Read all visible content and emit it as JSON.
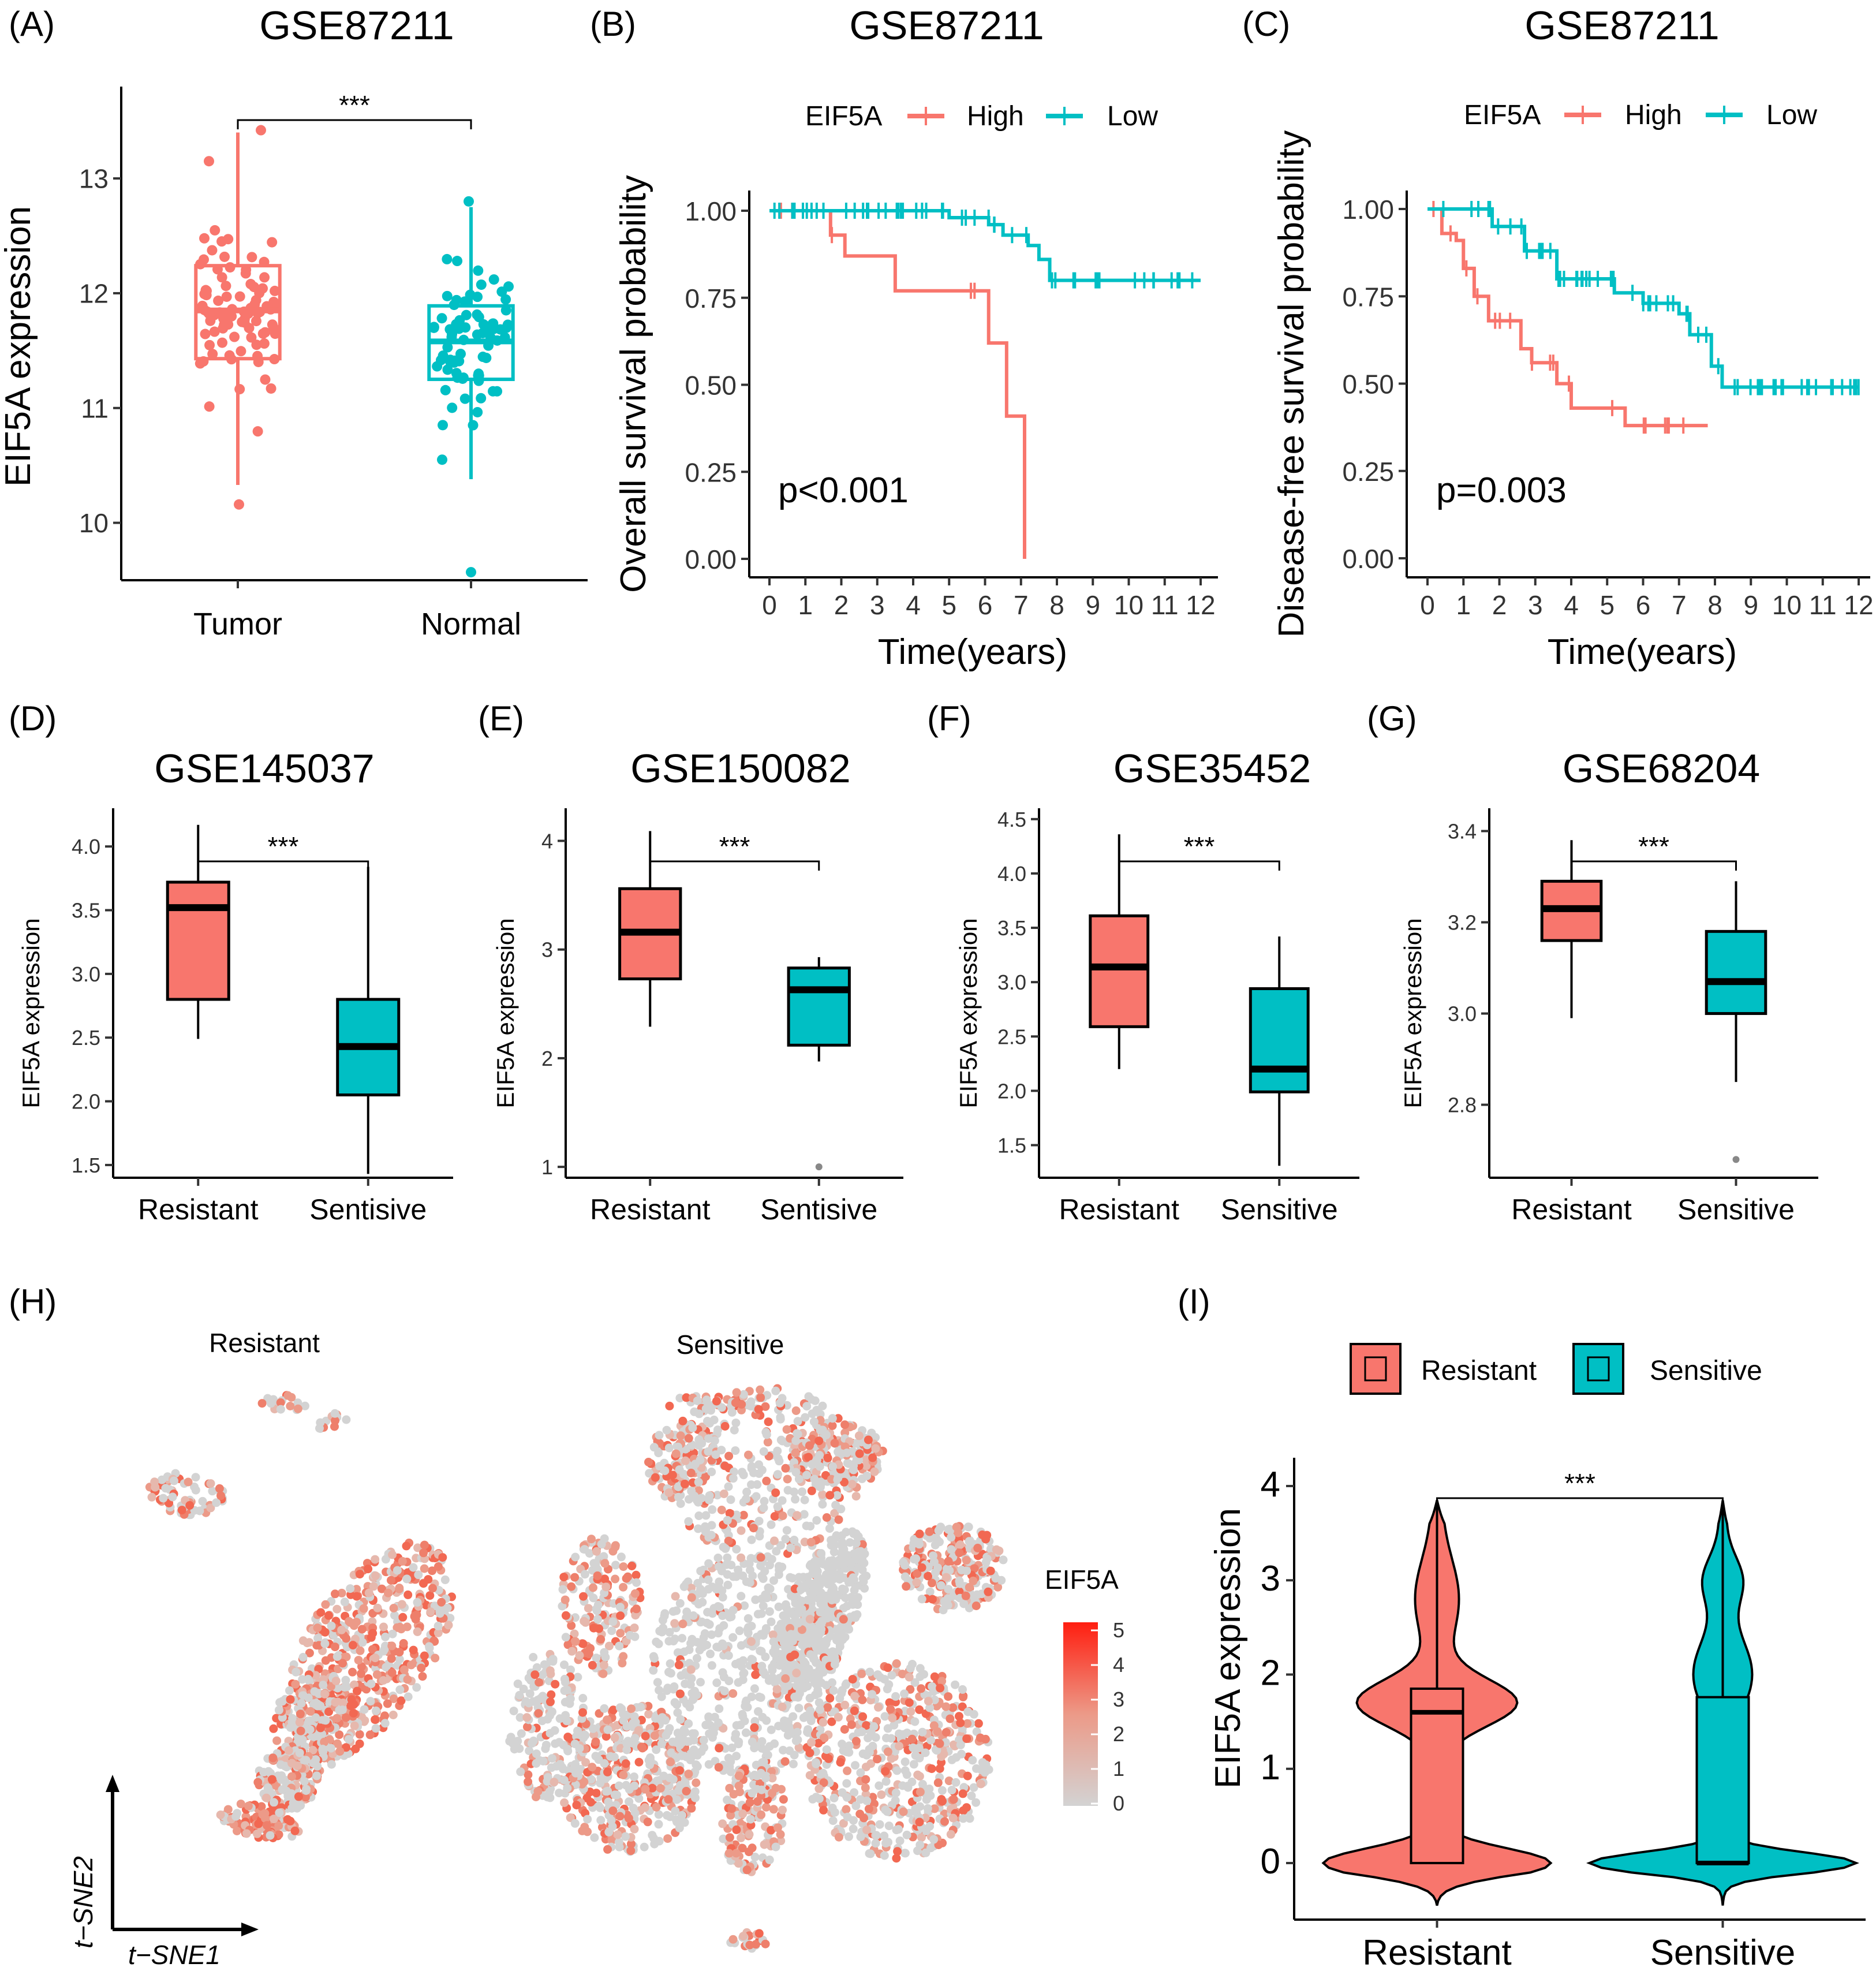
{
  "panels": {
    "A": {
      "label": "(A)",
      "title": "GSE87211",
      "ylabel": "EIF5A expression",
      "significance": "***",
      "chart_data": {
        "type": "box",
        "categories": [
          "Tumor",
          "Normal"
        ],
        "colors": [
          "#F8766D",
          "#00BFC4"
        ],
        "yticks": [
          10,
          11,
          12,
          13
        ],
        "ylim": [
          9.5,
          13.8
        ],
        "boxes": [
          {
            "name": "Tumor",
            "min": 10.33,
            "q1": 11.43,
            "median": 11.85,
            "q3": 12.24,
            "max": 13.4
          },
          {
            "name": "Normal",
            "min": 10.38,
            "q1": 11.25,
            "median": 11.58,
            "q3": 11.89,
            "max": 12.75
          }
        ]
      }
    },
    "B": {
      "label": "(B)",
      "title": "GSE87211",
      "legend_title": "EIF5A",
      "xlabel": "Time(years)",
      "ylabel": "Overall survival probability",
      "pvalue": "p<0.001",
      "chart_data": {
        "type": "line",
        "xlim": [
          0,
          12
        ],
        "ylim": [
          0,
          1
        ],
        "xticks": [
          "0",
          "1",
          "2",
          "3",
          "4",
          "5",
          "6",
          "7",
          "8",
          "9",
          "10",
          "11",
          "12"
        ],
        "yticks": [
          "0.00",
          "0.25",
          "0.50",
          "0.75",
          "1.00"
        ],
        "series": [
          {
            "name": "High",
            "color": "#F8766D",
            "x": [
              0,
              1.7,
              2.1,
              3.5,
              6.1,
              6.6,
              7.1,
              7.1
            ],
            "y": [
              1.0,
              0.93,
              0.87,
              0.77,
              0.62,
              0.41,
              0.0,
              0.0
            ]
          },
          {
            "name": "Low",
            "color": "#00BFC4",
            "x": [
              0,
              5.0,
              6.1,
              6.5,
              7.2,
              7.5,
              7.8,
              12
            ],
            "y": [
              1.0,
              0.98,
              0.96,
              0.93,
              0.9,
              0.86,
              0.8,
              0.8
            ]
          }
        ]
      }
    },
    "C": {
      "label": "(C)",
      "title": "GSE87211",
      "legend_title": "EIF5A",
      "xlabel": "Time(years)",
      "ylabel": "Disease-free survival probability",
      "pvalue": "p=0.003",
      "chart_data": {
        "type": "line",
        "xlim": [
          0,
          12
        ],
        "ylim": [
          0,
          1
        ],
        "xticks": [
          "0",
          "1",
          "2",
          "3",
          "4",
          "5",
          "6",
          "7",
          "8",
          "9",
          "10",
          "11",
          "12"
        ],
        "yticks": [
          "0.00",
          "0.25",
          "0.50",
          "0.75",
          "1.00"
        ],
        "series": [
          {
            "name": "High",
            "color": "#F8766D",
            "x": [
              0,
              0.4,
              0.8,
              1.0,
              1.3,
              1.7,
              2.6,
              2.9,
              3.6,
              4.0,
              5.5,
              7.8
            ],
            "y": [
              1.0,
              0.93,
              0.91,
              0.83,
              0.75,
              0.68,
              0.6,
              0.56,
              0.5,
              0.43,
              0.38,
              0.38
            ]
          },
          {
            "name": "Low",
            "color": "#00BFC4",
            "x": [
              0,
              1.8,
              2.7,
              3.6,
              5.2,
              6.0,
              7.0,
              7.3,
              7.9,
              8.2,
              12
            ],
            "y": [
              1.0,
              0.95,
              0.88,
              0.8,
              0.76,
              0.73,
              0.7,
              0.64,
              0.55,
              0.49,
              0.49
            ]
          }
        ]
      }
    },
    "D": {
      "label": "(D)",
      "title": "GSE145037",
      "ylabel": "EIF5A expression",
      "significance": "***",
      "chart_data": {
        "type": "box",
        "categories": [
          "Resistant",
          "Sentisive"
        ],
        "colors": [
          "#F8766D",
          "#00BFC4"
        ],
        "yticks": [
          "1.5",
          "2.0",
          "2.5",
          "3.0",
          "3.5",
          "4.0"
        ],
        "ylim": [
          1.4,
          4.3
        ],
        "boxes": [
          {
            "name": "Resistant",
            "min": 2.49,
            "q1": 2.8,
            "median": 3.52,
            "q3": 3.72,
            "max": 4.17
          },
          {
            "name": "Sentisive",
            "min": 1.43,
            "q1": 2.05,
            "median": 2.43,
            "q3": 2.8,
            "max": 3.84
          }
        ]
      }
    },
    "E": {
      "label": "(E)",
      "title": "GSE150082",
      "ylabel": "EIF5A expression",
      "significance": "***",
      "chart_data": {
        "type": "box",
        "categories": [
          "Resistant",
          "Sentisive"
        ],
        "colors": [
          "#F8766D",
          "#00BFC4"
        ],
        "yticks": [
          "1",
          "2",
          "3",
          "4"
        ],
        "ylim": [
          0.9,
          4.3
        ],
        "boxes": [
          {
            "name": "Resistant",
            "min": 2.29,
            "q1": 2.73,
            "median": 3.16,
            "q3": 3.56,
            "max": 4.09
          },
          {
            "name": "Sentisive",
            "min": 1.97,
            "q1": 2.12,
            "median": 2.63,
            "q3": 2.83,
            "max": 2.93,
            "outliers": [
              1.0
            ]
          }
        ]
      }
    },
    "F": {
      "label": "(F)",
      "title": "GSE35452",
      "ylabel": "EIF5A expression",
      "significance": "***",
      "chart_data": {
        "type": "box",
        "categories": [
          "Resistant",
          "Sensitive"
        ],
        "colors": [
          "#F8766D",
          "#00BFC4"
        ],
        "yticks": [
          "1.5",
          "2.0",
          "2.5",
          "3.0",
          "3.5",
          "4.0",
          "4.5"
        ],
        "ylim": [
          1.2,
          4.6
        ],
        "boxes": [
          {
            "name": "Resistant",
            "min": 2.2,
            "q1": 2.59,
            "median": 3.14,
            "q3": 3.61,
            "max": 4.36
          },
          {
            "name": "Sensitive",
            "min": 1.31,
            "q1": 1.99,
            "median": 2.2,
            "q3": 2.94,
            "max": 3.42
          }
        ]
      }
    },
    "G": {
      "label": "(G)",
      "title": "GSE68204",
      "ylabel": "EIF5A expression",
      "significance": "***",
      "chart_data": {
        "type": "box",
        "categories": [
          "Resistant",
          "Sensitive"
        ],
        "colors": [
          "#F8766D",
          "#00BFC4"
        ],
        "yticks": [
          "2.8",
          "3.0",
          "3.2",
          "3.4"
        ],
        "ylim": [
          2.64,
          3.45
        ],
        "boxes": [
          {
            "name": "Resistant",
            "min": 2.99,
            "q1": 3.16,
            "median": 3.23,
            "q3": 3.29,
            "max": 3.38
          },
          {
            "name": "Sensitive",
            "min": 2.85,
            "q1": 3.0,
            "median": 3.07,
            "q3": 3.18,
            "max": 3.29,
            "outliers": [
              2.68
            ]
          }
        ]
      }
    },
    "H": {
      "label": "(H)",
      "group1": "Resistant",
      "group2": "Sensitive",
      "xlabel": "t−SNE1",
      "ylabel": "t−SNE2",
      "colorbar_title": "EIF5A",
      "colorbar_ticks": [
        "0",
        "1",
        "2",
        "3",
        "4",
        "5"
      ],
      "chart_data": {
        "type": "scatter",
        "x_axis": "t-SNE1",
        "y_axis": "t-SNE2",
        "color_variable": "EIF5A expression",
        "color_range": [
          0,
          5
        ]
      }
    },
    "I": {
      "label": "(I)",
      "ylabel": "EIF5A expression",
      "significance": "***",
      "legend": [
        "Resistant",
        "Sensitive"
      ],
      "chart_data": {
        "type": "violin",
        "categories": [
          "Resistant",
          "Sensitive"
        ],
        "colors": [
          "#F8766D",
          "#00BFC4"
        ],
        "yticks": [
          "0",
          "1",
          "2",
          "3",
          "4"
        ],
        "ylim": [
          -0.6,
          4.3
        ],
        "boxes": [
          {
            "name": "Resistant",
            "min": 0,
            "q1": 0,
            "median": 1.6,
            "q3": 1.85,
            "max": 3.85
          },
          {
            "name": "Sensitive",
            "min": 0,
            "q1": 0,
            "median": 0,
            "q3": 1.76,
            "max": 3.85
          }
        ]
      }
    }
  }
}
